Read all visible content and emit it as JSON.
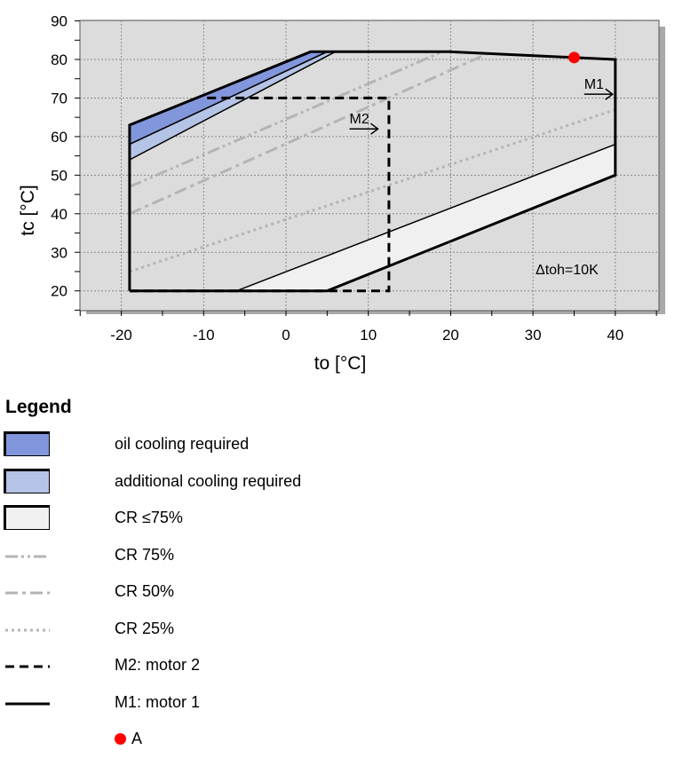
{
  "chart_data": {
    "type": "area",
    "title": "",
    "xlabel": "to [°C]",
    "ylabel": "tc [°C]",
    "xlim": [
      -25,
      45
    ],
    "ylim": [
      15,
      90
    ],
    "xticks": [
      -20,
      -10,
      0,
      10,
      20,
      30,
      40
    ],
    "yticks": [
      20,
      30,
      40,
      50,
      60,
      70,
      80,
      90
    ],
    "grid": true,
    "annotation": "Δtoh=10K",
    "series": [
      {
        "name": "M1: motor 1",
        "kind": "envelope",
        "style": "solid",
        "points": [
          [
            -19,
            20
          ],
          [
            5,
            20
          ],
          [
            40,
            50
          ],
          [
            40,
            80
          ],
          [
            20,
            82
          ],
          [
            3,
            82
          ],
          [
            -19,
            63
          ],
          [
            -19,
            20
          ]
        ]
      },
      {
        "name": "M2: motor 2",
        "kind": "envelope",
        "style": "dashed",
        "points": [
          [
            -19,
            20
          ],
          [
            12.5,
            20
          ],
          [
            12.5,
            70
          ],
          [
            -10,
            70
          ]
        ]
      },
      {
        "name": "oil cooling required",
        "kind": "region",
        "color": "#8296dc",
        "points": [
          [
            -19,
            63
          ],
          [
            3,
            82
          ],
          [
            5,
            82
          ],
          [
            -19,
            58
          ]
        ]
      },
      {
        "name": "additional cooling required",
        "kind": "region",
        "color": "#b4c3e6",
        "points": [
          [
            -19,
            58
          ],
          [
            5,
            82
          ],
          [
            6,
            82
          ],
          [
            -19,
            54
          ]
        ]
      },
      {
        "name": "CR ≤75%",
        "kind": "region",
        "color": "#f0f0f0",
        "points": [
          [
            -6,
            20
          ],
          [
            5,
            20
          ],
          [
            40,
            50
          ],
          [
            40,
            58
          ]
        ]
      },
      {
        "name": "CR 75%",
        "kind": "line",
        "style": "dash-dot-dot",
        "points": [
          [
            -19,
            47
          ],
          [
            19,
            82
          ]
        ]
      },
      {
        "name": "CR 50%",
        "kind": "line",
        "style": "dash-dot",
        "points": [
          [
            -19,
            40
          ],
          [
            25,
            82
          ]
        ]
      },
      {
        "name": "CR 25%",
        "kind": "line",
        "style": "dotted",
        "points": [
          [
            -19,
            25
          ],
          [
            40,
            67
          ]
        ]
      }
    ],
    "point_A": {
      "name": "A",
      "x": 35,
      "y": 80.5,
      "color": "#ff0000"
    },
    "arrows": [
      {
        "label": "M1",
        "x": 36,
        "y": 71
      },
      {
        "label": "M2",
        "x": 7.5,
        "y": 62
      }
    ]
  },
  "legend": {
    "title": "Legend",
    "items": [
      {
        "label": "oil cooling required",
        "swatch": "box",
        "color": "#8296dc"
      },
      {
        "label": "additional cooling required",
        "swatch": "box",
        "color": "#b4c3e6"
      },
      {
        "label": "CR ≤75%",
        "swatch": "box",
        "color": "#f0f0f0"
      },
      {
        "label": "CR 75%",
        "swatch": "dash-dot-dot"
      },
      {
        "label": "CR 50%",
        "swatch": "dash-dot"
      },
      {
        "label": "CR 25%",
        "swatch": "dotted"
      },
      {
        "label": "M2: motor 2",
        "swatch": "dashed"
      },
      {
        "label": "M1: motor 1",
        "swatch": "solid"
      },
      {
        "label": "A",
        "swatch": "point",
        "color": "#ff0000"
      }
    ]
  }
}
